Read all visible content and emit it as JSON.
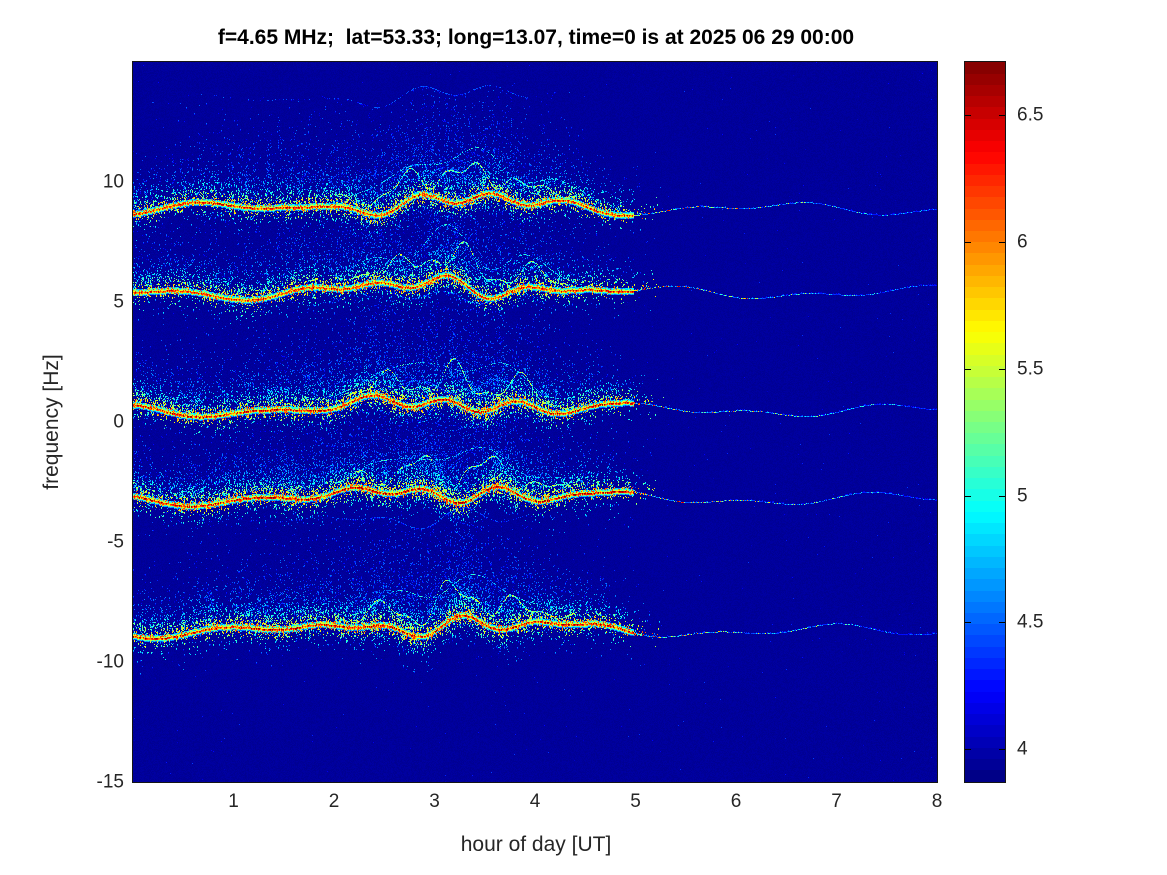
{
  "chart_data": {
    "type": "heatmap",
    "subtype": "doppler-spectrogram",
    "title": "f=4.65 MHz;  lat=53.33; long=13.07, time=0 is at 2025 06 29 00:00",
    "xlabel": "hour of day [UT]",
    "ylabel": "frequency [Hz]",
    "xlim": [
      0,
      8
    ],
    "ylim": [
      -15,
      15
    ],
    "x_ticks": [
      1,
      2,
      3,
      4,
      5,
      6,
      7,
      8
    ],
    "y_ticks": [
      10,
      5,
      0,
      -5,
      -10,
      -15
    ],
    "grid": false,
    "legend": false,
    "colorbar": {
      "colormap": "jet",
      "clim": [
        3.87,
        6.71
      ],
      "ticks": [
        4,
        4.5,
        5,
        5.5,
        6,
        6.5
      ],
      "position": "right"
    },
    "background_value": 3.95,
    "traces": [
      {
        "name": "doppler-line-1",
        "center_hz": 8.9,
        "strength": 0.9,
        "seed": 11
      },
      {
        "name": "doppler-line-2",
        "center_hz": 5.4,
        "strength": 0.85,
        "seed": 23
      },
      {
        "name": "doppler-line-3",
        "center_hz": 0.5,
        "strength": 1.0,
        "seed": 37
      },
      {
        "name": "doppler-line-4",
        "center_hz": -3.2,
        "strength": 1.15,
        "seed": 51
      },
      {
        "name": "doppler-line-5",
        "center_hz": -8.7,
        "strength": 1.05,
        "seed": 67
      }
    ],
    "activity": {
      "early_peak_hour": 1.3,
      "burst_peak_hour": 3.2,
      "burst_width_hours": 0.75,
      "fade_after_hour": 4.95,
      "max_excursion_hz": 2.0
    }
  }
}
